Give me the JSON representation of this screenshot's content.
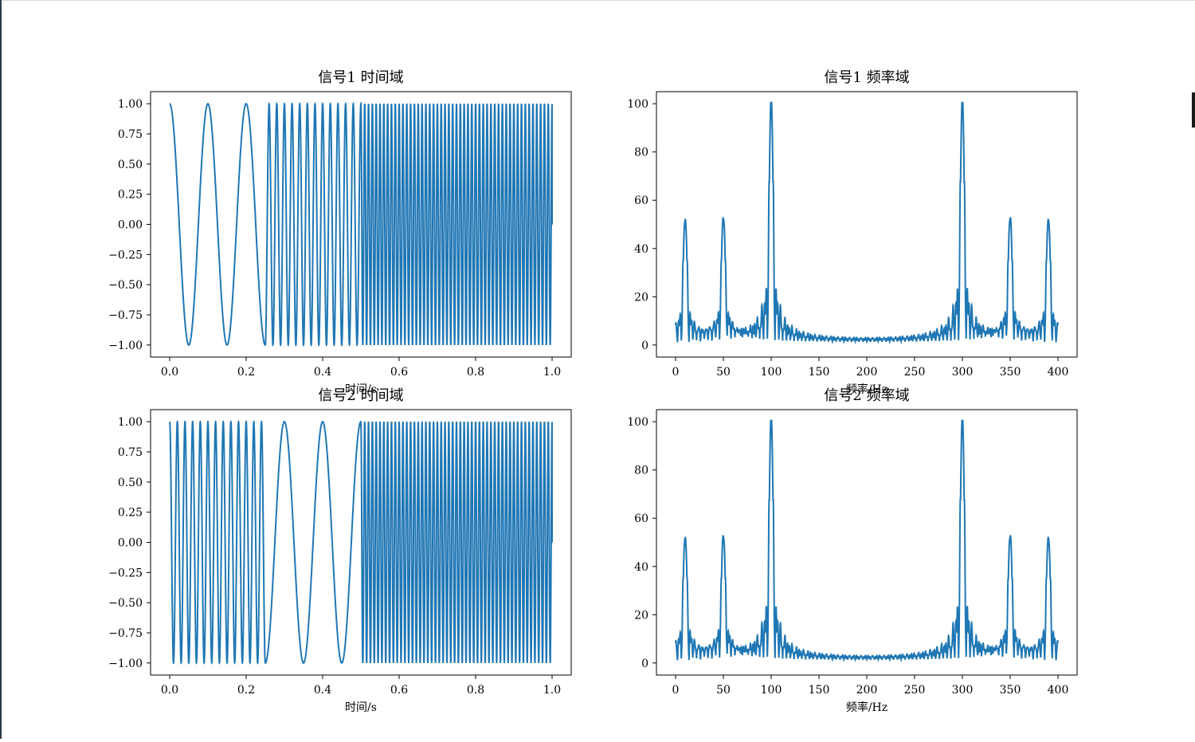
{
  "figure": {
    "line_color": "#1f77b4",
    "axes_color": "#000000",
    "background": "#ffffff"
  },
  "chart_data": [
    {
      "type": "line",
      "title": "信号1 时间域",
      "xlabel": "时间/s",
      "ylabel": "",
      "xlim": [
        -0.05,
        1.05
      ],
      "ylim": [
        -1.1,
        1.1
      ],
      "xticks": [
        0.0,
        0.2,
        0.4,
        0.6,
        0.8,
        1.0
      ],
      "xtick_labels": [
        "0.0",
        "0.2",
        "0.4",
        "0.6",
        "0.8",
        "1.0"
      ],
      "yticks": [
        1.0,
        0.75,
        0.5,
        0.25,
        0.0,
        -0.25,
        -0.5,
        -0.75,
        -1.0
      ],
      "ytick_labels": [
        "1.00",
        "0.75",
        "0.50",
        "0.25",
        "0.00",
        "−0.25",
        "−0.50",
        "−0.75",
        "−1.00"
      ],
      "signal": {
        "kind": "cosine_segments",
        "segments": [
          {
            "t_start": 0.0,
            "t_end": 0.25,
            "frequency_hz": 10
          },
          {
            "t_start": 0.25,
            "t_end": 0.5,
            "frequency_hz": 50
          },
          {
            "t_start": 0.5,
            "t_end": 1.0,
            "frequency_hz": 100
          }
        ],
        "t_end": 1.0,
        "final_value": 0.0
      },
      "grid": false
    },
    {
      "type": "line",
      "title": "信号1 频率域",
      "xlabel": "频率/Hz",
      "ylabel": "",
      "xlim": [
        -20,
        420
      ],
      "ylim": [
        -5,
        105
      ],
      "xticks": [
        0,
        50,
        100,
        150,
        200,
        250,
        300,
        350,
        400
      ],
      "xtick_labels": [
        "0",
        "50",
        "100",
        "150",
        "200",
        "250",
        "300",
        "350",
        "400"
      ],
      "yticks": [
        0,
        20,
        40,
        60,
        80,
        100
      ],
      "ytick_labels": [
        "0",
        "20",
        "40",
        "60",
        "80",
        "100"
      ],
      "spectrum": {
        "range": [
          0,
          400
        ],
        "peaks": [
          {
            "f": 10,
            "height": 50
          },
          {
            "f": 50,
            "height": 50
          },
          {
            "f": 100,
            "height": 100
          },
          {
            "f": 300,
            "height": 100
          },
          {
            "f": 350,
            "height": 50
          },
          {
            "f": 390,
            "height": 50
          }
        ]
      },
      "grid": false
    },
    {
      "type": "line",
      "title": "信号2 时间域",
      "xlabel": "时间/s",
      "ylabel": "",
      "xlim": [
        -0.05,
        1.05
      ],
      "ylim": [
        -1.1,
        1.1
      ],
      "xticks": [
        0.0,
        0.2,
        0.4,
        0.6,
        0.8,
        1.0
      ],
      "xtick_labels": [
        "0.0",
        "0.2",
        "0.4",
        "0.6",
        "0.8",
        "1.0"
      ],
      "yticks": [
        1.0,
        0.75,
        0.5,
        0.25,
        0.0,
        -0.25,
        -0.5,
        -0.75,
        -1.0
      ],
      "ytick_labels": [
        "1.00",
        "0.75",
        "0.50",
        "0.25",
        "0.00",
        "−0.25",
        "−0.50",
        "−0.75",
        "−1.00"
      ],
      "signal": {
        "kind": "cosine_segments",
        "segments": [
          {
            "t_start": 0.0,
            "t_end": 0.25,
            "frequency_hz": 50
          },
          {
            "t_start": 0.25,
            "t_end": 0.5,
            "frequency_hz": 10
          },
          {
            "t_start": 0.5,
            "t_end": 1.0,
            "frequency_hz": 100
          }
        ],
        "t_end": 1.0,
        "final_value": 0.0
      },
      "grid": false
    },
    {
      "type": "line",
      "title": "信号2 频率域",
      "xlabel": "频率/Hz",
      "ylabel": "",
      "xlim": [
        -20,
        420
      ],
      "ylim": [
        -5,
        105
      ],
      "xticks": [
        0,
        50,
        100,
        150,
        200,
        250,
        300,
        350,
        400
      ],
      "xtick_labels": [
        "0",
        "50",
        "100",
        "150",
        "200",
        "250",
        "300",
        "350",
        "400"
      ],
      "yticks": [
        0,
        20,
        40,
        60,
        80,
        100
      ],
      "ytick_labels": [
        "0",
        "20",
        "40",
        "60",
        "80",
        "100"
      ],
      "spectrum": {
        "range": [
          0,
          400
        ],
        "peaks": [
          {
            "f": 10,
            "height": 50
          },
          {
            "f": 50,
            "height": 50
          },
          {
            "f": 100,
            "height": 100
          },
          {
            "f": 300,
            "height": 100
          },
          {
            "f": 350,
            "height": 50
          },
          {
            "f": 390,
            "height": 50
          }
        ]
      },
      "grid": false
    }
  ]
}
